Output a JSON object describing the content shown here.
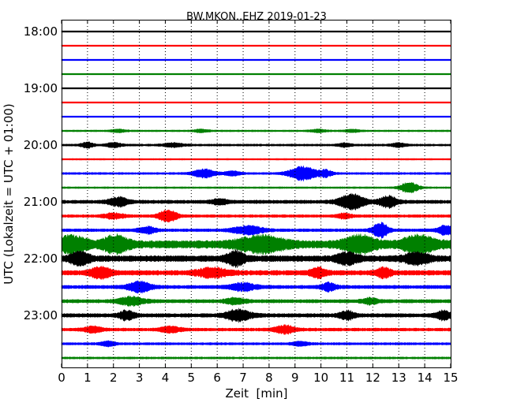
{
  "chart_data": {
    "type": "line",
    "title": "BW.MKON..EHZ 2019-01-23",
    "xlabel": "Zeit  [min]",
    "ylabel": "UTC (Lokalzeit = UTC + 01:00)",
    "xlim": [
      0,
      15
    ],
    "x_ticks": [
      "0",
      "1",
      "2",
      "3",
      "4",
      "5",
      "6",
      "7",
      "8",
      "9",
      "10",
      "11",
      "12",
      "13",
      "14",
      "15"
    ],
    "y_tick_labels": [
      "18:00",
      "19:00",
      "20:00",
      "21:00",
      "22:00",
      "23:00"
    ],
    "grid": "vertical dotted at each minute",
    "trace_interval_minutes": 15,
    "colors": [
      "#000000",
      "#ff0000",
      "#0000ff",
      "#008000"
    ],
    "series": [
      {
        "start": "18:00",
        "color": "#000000",
        "base": 0.8,
        "bursts": []
      },
      {
        "start": "18:15",
        "color": "#ff0000",
        "base": 0.8,
        "bursts": []
      },
      {
        "start": "18:30",
        "color": "#0000ff",
        "base": 0.8,
        "bursts": []
      },
      {
        "start": "18:45",
        "color": "#008000",
        "base": 0.8,
        "bursts": []
      },
      {
        "start": "19:00",
        "color": "#000000",
        "base": 0.8,
        "bursts": []
      },
      {
        "start": "19:15",
        "color": "#ff0000",
        "base": 0.8,
        "bursts": []
      },
      {
        "start": "19:30",
        "color": "#0000ff",
        "base": 0.8,
        "bursts": []
      },
      {
        "start": "19:45",
        "color": "#008000",
        "base": 1.0,
        "bursts": [
          [
            2.2,
            0.3,
            1.5
          ],
          [
            5.4,
            0.3,
            1.5
          ],
          [
            9.9,
            0.3,
            1.5
          ],
          [
            11.2,
            0.3,
            1.4
          ]
        ]
      },
      {
        "start": "20:00",
        "color": "#000000",
        "base": 1.2,
        "bursts": [
          [
            1.0,
            0.25,
            3.0
          ],
          [
            2.0,
            0.3,
            2.5
          ],
          [
            4.3,
            0.4,
            2.0
          ],
          [
            10.9,
            0.25,
            2.0
          ],
          [
            13.0,
            0.3,
            2.0
          ]
        ]
      },
      {
        "start": "20:15",
        "color": "#ff0000",
        "base": 0.9,
        "bursts": []
      },
      {
        "start": "20:30",
        "color": "#0000ff",
        "base": 1.2,
        "bursts": [
          [
            5.5,
            0.45,
            4.5
          ],
          [
            6.6,
            0.3,
            2.5
          ],
          [
            9.3,
            0.55,
            7.5
          ],
          [
            10.2,
            0.25,
            3.5
          ]
        ]
      },
      {
        "start": "20:45",
        "color": "#008000",
        "base": 1.0,
        "bursts": [
          [
            13.4,
            0.35,
            6.0
          ]
        ]
      },
      {
        "start": "21:00",
        "color": "#000000",
        "base": 2.0,
        "bursts": [
          [
            2.2,
            0.4,
            4.5
          ],
          [
            6.1,
            0.3,
            3.0
          ],
          [
            11.2,
            0.5,
            8.0
          ],
          [
            12.6,
            0.35,
            6.0
          ]
        ]
      },
      {
        "start": "21:15",
        "color": "#ff0000",
        "base": 1.6,
        "bursts": [
          [
            4.1,
            0.35,
            6.5
          ],
          [
            2.0,
            0.4,
            3.0
          ],
          [
            10.9,
            0.3,
            2.5
          ]
        ]
      },
      {
        "start": "21:30",
        "color": "#0000ff",
        "base": 1.7,
        "bursts": [
          [
            3.3,
            0.35,
            3.5
          ],
          [
            7.2,
            0.6,
            4.5
          ],
          [
            12.3,
            0.3,
            8.0
          ],
          [
            14.8,
            0.3,
            5.0
          ]
        ]
      },
      {
        "start": "21:45",
        "color": "#008000",
        "base": 4.5,
        "bursts": [
          [
            0.3,
            0.7,
            7.5
          ],
          [
            2.1,
            0.5,
            8.5
          ],
          [
            7.7,
            0.9,
            7.5
          ],
          [
            11.5,
            0.6,
            8.5
          ],
          [
            13.8,
            0.7,
            8.0
          ]
        ]
      },
      {
        "start": "22:00",
        "color": "#000000",
        "base": 3.5,
        "bursts": [
          [
            0.7,
            0.4,
            6.0
          ],
          [
            6.7,
            0.35,
            7.5
          ],
          [
            11.0,
            0.4,
            6.0
          ],
          [
            13.7,
            0.5,
            5.5
          ]
        ]
      },
      {
        "start": "22:15",
        "color": "#ff0000",
        "base": 2.8,
        "bursts": [
          [
            1.5,
            0.4,
            5.5
          ],
          [
            5.8,
            0.6,
            4.5
          ],
          [
            9.9,
            0.3,
            5.0
          ],
          [
            12.4,
            0.3,
            4.5
          ]
        ]
      },
      {
        "start": "22:30",
        "color": "#0000ff",
        "base": 2.0,
        "bursts": [
          [
            3.0,
            0.45,
            5.5
          ],
          [
            7.0,
            0.5,
            4.0
          ],
          [
            10.3,
            0.3,
            4.0
          ]
        ]
      },
      {
        "start": "22:45",
        "color": "#008000",
        "base": 2.0,
        "bursts": [
          [
            2.7,
            0.5,
            4.5
          ],
          [
            6.7,
            0.4,
            3.0
          ],
          [
            11.9,
            0.3,
            3.0
          ]
        ]
      },
      {
        "start": "23:00",
        "color": "#000000",
        "base": 2.2,
        "bursts": [
          [
            2.5,
            0.3,
            5.0
          ],
          [
            6.8,
            0.5,
            6.0
          ],
          [
            11.0,
            0.3,
            4.5
          ],
          [
            14.7,
            0.3,
            4.5
          ]
        ]
      },
      {
        "start": "23:15",
        "color": "#ff0000",
        "base": 1.8,
        "bursts": [
          [
            1.2,
            0.35,
            3.0
          ],
          [
            8.6,
            0.4,
            4.5
          ],
          [
            4.2,
            0.4,
            3.0
          ]
        ]
      },
      {
        "start": "23:30",
        "color": "#0000ff",
        "base": 1.4,
        "bursts": [
          [
            1.8,
            0.3,
            2.5
          ],
          [
            9.2,
            0.3,
            2.5
          ]
        ]
      },
      {
        "start": "23:45",
        "color": "#008000",
        "base": 1.2,
        "bursts": []
      }
    ]
  }
}
